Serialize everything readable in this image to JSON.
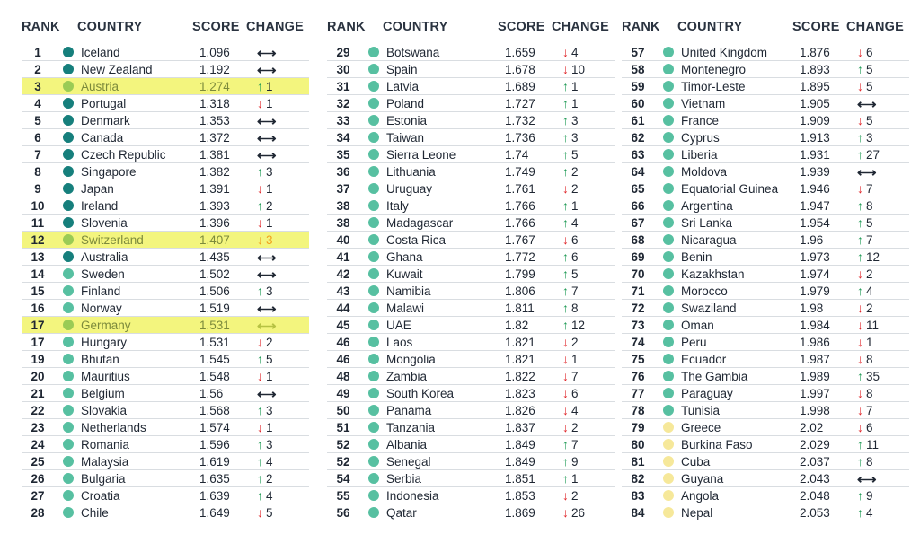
{
  "chart_data": {
    "type": "table",
    "columns": [
      "RANK",
      "COUNTRY",
      "SCORE",
      "CHANGE"
    ],
    "colors": {
      "dark_teal": "#167f7c",
      "teal": "#57c0a1",
      "light_green": "#9acb55",
      "yellow": "#f6e89a",
      "highlight": "#f3f57e",
      "up": "#1e9a55",
      "down": "#e0262a",
      "warn": "#f1a01d",
      "neutral_highlight": "#b6c243"
    },
    "rows": [
      {
        "rank": "1",
        "country": "Iceland",
        "score": "1.096",
        "dir": "same",
        "change": "",
        "dot": "dark_teal"
      },
      {
        "rank": "2",
        "country": "New Zealand",
        "score": "1.192",
        "dir": "same",
        "change": "",
        "dot": "dark_teal"
      },
      {
        "rank": "3",
        "country": "Austria",
        "score": "1.274",
        "dir": "up",
        "change": "1",
        "dot": "light_green",
        "highlight": true
      },
      {
        "rank": "4",
        "country": "Portugal",
        "score": "1.318",
        "dir": "down",
        "change": "1",
        "dot": "dark_teal"
      },
      {
        "rank": "5",
        "country": "Denmark",
        "score": "1.353",
        "dir": "same",
        "change": "",
        "dot": "dark_teal"
      },
      {
        "rank": "6",
        "country": "Canada",
        "score": "1.372",
        "dir": "same",
        "change": "",
        "dot": "dark_teal"
      },
      {
        "rank": "7",
        "country": "Czech Republic",
        "score": "1.381",
        "dir": "same",
        "change": "",
        "dot": "dark_teal"
      },
      {
        "rank": "8",
        "country": "Singapore",
        "score": "1.382",
        "dir": "up",
        "change": "3",
        "dot": "dark_teal"
      },
      {
        "rank": "9",
        "country": "Japan",
        "score": "1.391",
        "dir": "down",
        "change": "1",
        "dot": "dark_teal"
      },
      {
        "rank": "10",
        "country": "Ireland",
        "score": "1.393",
        "dir": "up",
        "change": "2",
        "dot": "dark_teal"
      },
      {
        "rank": "11",
        "country": "Slovenia",
        "score": "1.396",
        "dir": "down",
        "change": "1",
        "dot": "dark_teal"
      },
      {
        "rank": "12",
        "country": "Switzerland",
        "score": "1.407",
        "dir": "down",
        "change": "3",
        "dot": "light_green",
        "highlight": true
      },
      {
        "rank": "13",
        "country": "Australia",
        "score": "1.435",
        "dir": "same",
        "change": "",
        "dot": "dark_teal"
      },
      {
        "rank": "14",
        "country": "Sweden",
        "score": "1.502",
        "dir": "same",
        "change": "",
        "dot": "teal"
      },
      {
        "rank": "15",
        "country": "Finland",
        "score": "1.506",
        "dir": "up",
        "change": "3",
        "dot": "teal"
      },
      {
        "rank": "16",
        "country": "Norway",
        "score": "1.519",
        "dir": "same",
        "change": "",
        "dot": "teal"
      },
      {
        "rank": "17",
        "country": "Germany",
        "score": "1.531",
        "dir": "same",
        "change": "",
        "dot": "light_green",
        "highlight": true
      },
      {
        "rank": "17",
        "country": "Hungary",
        "score": "1.531",
        "dir": "down",
        "change": "2",
        "dot": "teal"
      },
      {
        "rank": "19",
        "country": "Bhutan",
        "score": "1.545",
        "dir": "up",
        "change": "5",
        "dot": "teal"
      },
      {
        "rank": "20",
        "country": "Mauritius",
        "score": "1.548",
        "dir": "down",
        "change": "1",
        "dot": "teal"
      },
      {
        "rank": "21",
        "country": "Belgium",
        "score": "1.56",
        "dir": "same",
        "change": "",
        "dot": "teal"
      },
      {
        "rank": "22",
        "country": "Slovakia",
        "score": "1.568",
        "dir": "up",
        "change": "3",
        "dot": "teal"
      },
      {
        "rank": "23",
        "country": "Netherlands",
        "score": "1.574",
        "dir": "down",
        "change": "1",
        "dot": "teal"
      },
      {
        "rank": "24",
        "country": "Romania",
        "score": "1.596",
        "dir": "up",
        "change": "3",
        "dot": "teal"
      },
      {
        "rank": "25",
        "country": "Malaysia",
        "score": "1.619",
        "dir": "up",
        "change": "4",
        "dot": "teal"
      },
      {
        "rank": "26",
        "country": "Bulgaria",
        "score": "1.635",
        "dir": "up",
        "change": "2",
        "dot": "teal"
      },
      {
        "rank": "27",
        "country": "Croatia",
        "score": "1.639",
        "dir": "up",
        "change": "4",
        "dot": "teal"
      },
      {
        "rank": "28",
        "country": "Chile",
        "score": "1.649",
        "dir": "down",
        "change": "5",
        "dot": "teal"
      },
      {
        "rank": "29",
        "country": "Botswana",
        "score": "1.659",
        "dir": "down",
        "change": "4",
        "dot": "teal"
      },
      {
        "rank": "30",
        "country": "Spain",
        "score": "1.678",
        "dir": "down",
        "change": "10",
        "dot": "teal"
      },
      {
        "rank": "31",
        "country": "Latvia",
        "score": "1.689",
        "dir": "up",
        "change": "1",
        "dot": "teal"
      },
      {
        "rank": "32",
        "country": "Poland",
        "score": "1.727",
        "dir": "up",
        "change": "1",
        "dot": "teal"
      },
      {
        "rank": "33",
        "country": "Estonia",
        "score": "1.732",
        "dir": "up",
        "change": "3",
        "dot": "teal"
      },
      {
        "rank": "34",
        "country": "Taiwan",
        "score": "1.736",
        "dir": "up",
        "change": "3",
        "dot": "teal"
      },
      {
        "rank": "35",
        "country": "Sierra Leone",
        "score": "1.74",
        "dir": "up",
        "change": "5",
        "dot": "teal"
      },
      {
        "rank": "36",
        "country": "Lithuania",
        "score": "1.749",
        "dir": "up",
        "change": "2",
        "dot": "teal"
      },
      {
        "rank": "37",
        "country": "Uruguay",
        "score": "1.761",
        "dir": "down",
        "change": "2",
        "dot": "teal"
      },
      {
        "rank": "38",
        "country": "Italy",
        "score": "1.766",
        "dir": "up",
        "change": "1",
        "dot": "teal"
      },
      {
        "rank": "38",
        "country": "Madagascar",
        "score": "1.766",
        "dir": "up",
        "change": "4",
        "dot": "teal"
      },
      {
        "rank": "40",
        "country": "Costa Rica",
        "score": "1.767",
        "dir": "down",
        "change": "6",
        "dot": "teal"
      },
      {
        "rank": "41",
        "country": "Ghana",
        "score": "1.772",
        "dir": "up",
        "change": "6",
        "dot": "teal"
      },
      {
        "rank": "42",
        "country": "Kuwait",
        "score": "1.799",
        "dir": "up",
        "change": "5",
        "dot": "teal"
      },
      {
        "rank": "43",
        "country": "Namibia",
        "score": "1.806",
        "dir": "up",
        "change": "7",
        "dot": "teal"
      },
      {
        "rank": "44",
        "country": "Malawi",
        "score": "1.811",
        "dir": "up",
        "change": "8",
        "dot": "teal"
      },
      {
        "rank": "45",
        "country": "UAE",
        "score": "1.82",
        "dir": "up",
        "change": "12",
        "dot": "teal"
      },
      {
        "rank": "46",
        "country": "Laos",
        "score": "1.821",
        "dir": "down",
        "change": "2",
        "dot": "teal"
      },
      {
        "rank": "46",
        "country": "Mongolia",
        "score": "1.821",
        "dir": "down",
        "change": "1",
        "dot": "teal"
      },
      {
        "rank": "48",
        "country": "Zambia",
        "score": "1.822",
        "dir": "down",
        "change": "7",
        "dot": "teal"
      },
      {
        "rank": "49",
        "country": "South Korea",
        "score": "1.823",
        "dir": "down",
        "change": "6",
        "dot": "teal"
      },
      {
        "rank": "50",
        "country": "Panama",
        "score": "1.826",
        "dir": "down",
        "change": "4",
        "dot": "teal"
      },
      {
        "rank": "51",
        "country": "Tanzania",
        "score": "1.837",
        "dir": "down",
        "change": "2",
        "dot": "teal"
      },
      {
        "rank": "52",
        "country": "Albania",
        "score": "1.849",
        "dir": "up",
        "change": "7",
        "dot": "teal"
      },
      {
        "rank": "52",
        "country": "Senegal",
        "score": "1.849",
        "dir": "up",
        "change": "9",
        "dot": "teal"
      },
      {
        "rank": "54",
        "country": "Serbia",
        "score": "1.851",
        "dir": "up",
        "change": "1",
        "dot": "teal"
      },
      {
        "rank": "55",
        "country": "Indonesia",
        "score": "1.853",
        "dir": "down",
        "change": "2",
        "dot": "teal"
      },
      {
        "rank": "56",
        "country": "Qatar",
        "score": "1.869",
        "dir": "down",
        "change": "26",
        "dot": "teal"
      },
      {
        "rank": "57",
        "country": "United Kingdom",
        "score": "1.876",
        "dir": "down",
        "change": "6",
        "dot": "teal"
      },
      {
        "rank": "58",
        "country": "Montenegro",
        "score": "1.893",
        "dir": "up",
        "change": "5",
        "dot": "teal"
      },
      {
        "rank": "59",
        "country": "Timor-Leste",
        "score": "1.895",
        "dir": "down",
        "change": "5",
        "dot": "teal"
      },
      {
        "rank": "60",
        "country": "Vietnam",
        "score": "1.905",
        "dir": "same",
        "change": "",
        "dot": "teal"
      },
      {
        "rank": "61",
        "country": "France",
        "score": "1.909",
        "dir": "down",
        "change": "5",
        "dot": "teal"
      },
      {
        "rank": "62",
        "country": "Cyprus",
        "score": "1.913",
        "dir": "up",
        "change": "3",
        "dot": "teal"
      },
      {
        "rank": "63",
        "country": "Liberia",
        "score": "1.931",
        "dir": "up",
        "change": "27",
        "dot": "teal"
      },
      {
        "rank": "64",
        "country": "Moldova",
        "score": "1.939",
        "dir": "same",
        "change": "",
        "dot": "teal"
      },
      {
        "rank": "65",
        "country": "Equatorial Guinea",
        "score": "1.946",
        "dir": "down",
        "change": "7",
        "dot": "teal"
      },
      {
        "rank": "66",
        "country": "Argentina",
        "score": "1.947",
        "dir": "up",
        "change": "8",
        "dot": "teal"
      },
      {
        "rank": "67",
        "country": "Sri Lanka",
        "score": "1.954",
        "dir": "up",
        "change": "5",
        "dot": "teal"
      },
      {
        "rank": "68",
        "country": "Nicaragua",
        "score": "1.96",
        "dir": "up",
        "change": "7",
        "dot": "teal"
      },
      {
        "rank": "69",
        "country": "Benin",
        "score": "1.973",
        "dir": "up",
        "change": "12",
        "dot": "teal"
      },
      {
        "rank": "70",
        "country": "Kazakhstan",
        "score": "1.974",
        "dir": "down",
        "change": "2",
        "dot": "teal"
      },
      {
        "rank": "71",
        "country": "Morocco",
        "score": "1.979",
        "dir": "up",
        "change": "4",
        "dot": "teal"
      },
      {
        "rank": "72",
        "country": "Swaziland",
        "score": "1.98",
        "dir": "down",
        "change": "2",
        "dot": "teal"
      },
      {
        "rank": "73",
        "country": "Oman",
        "score": "1.984",
        "dir": "down",
        "change": "11",
        "dot": "teal"
      },
      {
        "rank": "74",
        "country": "Peru",
        "score": "1.986",
        "dir": "down",
        "change": "1",
        "dot": "teal"
      },
      {
        "rank": "75",
        "country": "Ecuador",
        "score": "1.987",
        "dir": "down",
        "change": "8",
        "dot": "teal"
      },
      {
        "rank": "76",
        "country": "The Gambia",
        "score": "1.989",
        "dir": "up",
        "change": "35",
        "dot": "teal"
      },
      {
        "rank": "77",
        "country": "Paraguay",
        "score": "1.997",
        "dir": "down",
        "change": "8",
        "dot": "teal"
      },
      {
        "rank": "78",
        "country": "Tunisia",
        "score": "1.998",
        "dir": "down",
        "change": "7",
        "dot": "teal"
      },
      {
        "rank": "79",
        "country": "Greece",
        "score": "2.02",
        "dir": "down",
        "change": "6",
        "dot": "yellow"
      },
      {
        "rank": "80",
        "country": "Burkina Faso",
        "score": "2.029",
        "dir": "up",
        "change": "11",
        "dot": "yellow"
      },
      {
        "rank": "81",
        "country": "Cuba",
        "score": "2.037",
        "dir": "up",
        "change": "8",
        "dot": "yellow"
      },
      {
        "rank": "82",
        "country": "Guyana",
        "score": "2.043",
        "dir": "same",
        "change": "",
        "dot": "yellow"
      },
      {
        "rank": "83",
        "country": "Angola",
        "score": "2.048",
        "dir": "up",
        "change": "9",
        "dot": "yellow"
      },
      {
        "rank": "84",
        "country": "Nepal",
        "score": "2.053",
        "dir": "up",
        "change": "4",
        "dot": "yellow"
      }
    ]
  }
}
